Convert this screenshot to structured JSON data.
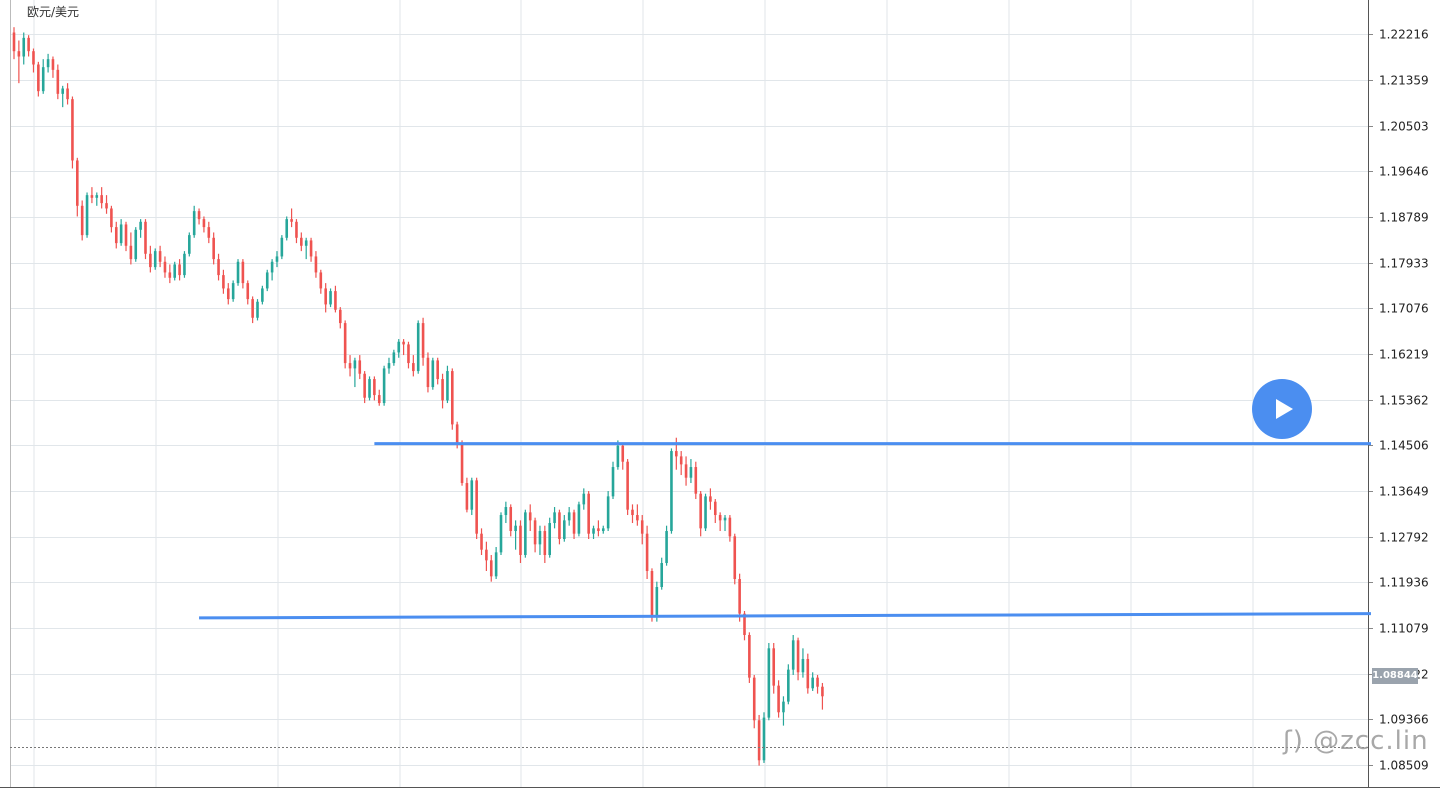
{
  "header": {
    "pair_label": "欧元/美元"
  },
  "watermark": {
    "text": "ʃ) @zcc.lin"
  },
  "current_price_label": "1.08844",
  "colors": {
    "up": "#26a69a",
    "down": "#ef5350",
    "support_resistance": "#4b8ef0",
    "grid": "#e1e6ea",
    "axis_text": "#222222",
    "play_button": "#4b8ef0",
    "price_tag_bg": "#9aa3ad"
  },
  "icons": {
    "play": "play-icon"
  },
  "chart_data": {
    "type": "candlestick",
    "title": "",
    "y_ticks": [
      "1.22216",
      "1.21359",
      "1.20503",
      "1.19646",
      "1.18789",
      "1.17933",
      "1.17076",
      "1.16219",
      "1.15362",
      "1.14506",
      "1.13649",
      "1.12792",
      "1.11936",
      "1.11079",
      "1.10222",
      "1.09366",
      "1.08509"
    ],
    "ylim": [
      1.0808,
      1.2286
    ],
    "grid": true,
    "current_price": 1.08844,
    "horizontal_lines": [
      {
        "name": "resistance",
        "start_index": 74,
        "end_index": 254,
        "y_start": 1.1454,
        "y_end": 1.1454
      },
      {
        "name": "support",
        "start_index": 38,
        "end_index": 254,
        "y_start": 1.1127,
        "y_end": 1.1135
      }
    ],
    "candles": [
      [
        1.2225,
        1.2235,
        1.2175,
        1.219
      ],
      [
        1.219,
        1.221,
        1.213,
        1.218
      ],
      [
        1.218,
        1.2225,
        1.2165,
        1.2215
      ],
      [
        1.2215,
        1.222,
        1.218,
        1.219
      ],
      [
        1.219,
        1.2195,
        1.215,
        1.2165
      ],
      [
        1.2165,
        1.217,
        1.2105,
        1.2115
      ],
      [
        1.2115,
        1.2175,
        1.211,
        1.216
      ],
      [
        1.216,
        1.2185,
        1.215,
        1.2175
      ],
      [
        1.2175,
        1.218,
        1.214,
        1.2155
      ],
      [
        1.2155,
        1.2165,
        1.21,
        1.211
      ],
      [
        1.211,
        1.2125,
        1.2085,
        1.212
      ],
      [
        1.212,
        1.213,
        1.209,
        1.21
      ],
      [
        1.21,
        1.2105,
        1.197,
        1.1985
      ],
      [
        1.1985,
        1.199,
        1.188,
        1.19
      ],
      [
        1.19,
        1.191,
        1.1835,
        1.1845
      ],
      [
        1.1845,
        1.1925,
        1.184,
        1.192
      ],
      [
        1.192,
        1.1935,
        1.1905,
        1.1915
      ],
      [
        1.1915,
        1.1925,
        1.19,
        1.192
      ],
      [
        1.192,
        1.1935,
        1.1895,
        1.1905
      ],
      [
        1.1905,
        1.192,
        1.1885,
        1.1895
      ],
      [
        1.1895,
        1.19,
        1.185,
        1.186
      ],
      [
        1.186,
        1.187,
        1.182,
        1.183
      ],
      [
        1.183,
        1.1875,
        1.1825,
        1.1865
      ],
      [
        1.1865,
        1.187,
        1.1815,
        1.1825
      ],
      [
        1.1825,
        1.185,
        1.179,
        1.18
      ],
      [
        1.18,
        1.186,
        1.1795,
        1.1855
      ],
      [
        1.1855,
        1.1875,
        1.184,
        1.187
      ],
      [
        1.187,
        1.1875,
        1.18,
        1.181
      ],
      [
        1.181,
        1.1825,
        1.1775,
        1.1785
      ],
      [
        1.1785,
        1.182,
        1.178,
        1.1815
      ],
      [
        1.1815,
        1.1825,
        1.1785,
        1.1795
      ],
      [
        1.1795,
        1.1805,
        1.1765,
        1.1775
      ],
      [
        1.1775,
        1.179,
        1.1755,
        1.1765
      ],
      [
        1.1765,
        1.1795,
        1.176,
        1.179
      ],
      [
        1.179,
        1.18,
        1.176,
        1.177
      ],
      [
        1.177,
        1.1815,
        1.1765,
        1.181
      ],
      [
        1.181,
        1.185,
        1.1805,
        1.1845
      ],
      [
        1.1845,
        1.19,
        1.184,
        1.189
      ],
      [
        1.189,
        1.1895,
        1.1865,
        1.1875
      ],
      [
        1.1875,
        1.188,
        1.185,
        1.186
      ],
      [
        1.186,
        1.187,
        1.183,
        1.184
      ],
      [
        1.184,
        1.185,
        1.179,
        1.18
      ],
      [
        1.18,
        1.181,
        1.176,
        1.177
      ],
      [
        1.177,
        1.178,
        1.1735,
        1.1745
      ],
      [
        1.1745,
        1.1755,
        1.1715,
        1.1725
      ],
      [
        1.1725,
        1.176,
        1.172,
        1.1755
      ],
      [
        1.1755,
        1.18,
        1.175,
        1.1795
      ],
      [
        1.1795,
        1.18,
        1.1745,
        1.1755
      ],
      [
        1.1755,
        1.176,
        1.1715,
        1.1725
      ],
      [
        1.1725,
        1.173,
        1.168,
        1.169
      ],
      [
        1.169,
        1.1725,
        1.1685,
        1.172
      ],
      [
        1.172,
        1.175,
        1.1715,
        1.1745
      ],
      [
        1.1745,
        1.178,
        1.174,
        1.1775
      ],
      [
        1.1775,
        1.18,
        1.176,
        1.1795
      ],
      [
        1.1795,
        1.1815,
        1.1785,
        1.1805
      ],
      [
        1.1805,
        1.1845,
        1.18,
        1.184
      ],
      [
        1.184,
        1.188,
        1.1835,
        1.1875
      ],
      [
        1.1875,
        1.1895,
        1.186,
        1.187
      ],
      [
        1.187,
        1.1875,
        1.183,
        1.184
      ],
      [
        1.184,
        1.185,
        1.1815,
        1.1825
      ],
      [
        1.1825,
        1.184,
        1.18,
        1.1835
      ],
      [
        1.1835,
        1.184,
        1.1795,
        1.1805
      ],
      [
        1.1805,
        1.1815,
        1.1765,
        1.1775
      ],
      [
        1.1775,
        1.178,
        1.1735,
        1.1745
      ],
      [
        1.1745,
        1.1755,
        1.17,
        1.1715
      ],
      [
        1.1715,
        1.1745,
        1.171,
        1.174
      ],
      [
        1.174,
        1.175,
        1.17,
        1.1705
      ],
      [
        1.1705,
        1.171,
        1.167,
        1.168
      ],
      [
        1.168,
        1.1685,
        1.1595,
        1.1605
      ],
      [
        1.1605,
        1.162,
        1.158,
        1.1595
      ],
      [
        1.1595,
        1.1615,
        1.156,
        1.161
      ],
      [
        1.161,
        1.162,
        1.1575,
        1.1585
      ],
      [
        1.1585,
        1.159,
        1.153,
        1.154
      ],
      [
        1.154,
        1.158,
        1.1535,
        1.1575
      ],
      [
        1.1575,
        1.158,
        1.1535,
        1.1545
      ],
      [
        1.1545,
        1.1555,
        1.1525,
        1.153
      ],
      [
        1.153,
        1.16,
        1.1525,
        1.1595
      ],
      [
        1.1595,
        1.1615,
        1.1585,
        1.1605
      ],
      [
        1.1605,
        1.163,
        1.16,
        1.1625
      ],
      [
        1.1625,
        1.165,
        1.1615,
        1.1645
      ],
      [
        1.1645,
        1.165,
        1.162,
        1.164
      ],
      [
        1.164,
        1.1645,
        1.1595,
        1.1605
      ],
      [
        1.1605,
        1.162,
        1.158,
        1.159
      ],
      [
        1.159,
        1.1685,
        1.1585,
        1.168
      ],
      [
        1.168,
        1.169,
        1.16,
        1.1615
      ],
      [
        1.1615,
        1.1625,
        1.155,
        1.156
      ],
      [
        1.156,
        1.1615,
        1.1555,
        1.161
      ],
      [
        1.161,
        1.1615,
        1.1565,
        1.1575
      ],
      [
        1.1575,
        1.1585,
        1.152,
        1.1535
      ],
      [
        1.1535,
        1.16,
        1.153,
        1.159
      ],
      [
        1.159,
        1.1595,
        1.148,
        1.149
      ],
      [
        1.149,
        1.1495,
        1.1445,
        1.1455
      ],
      [
        1.1455,
        1.146,
        1.1375,
        1.138
      ],
      [
        1.138,
        1.139,
        1.1325,
        1.133
      ],
      [
        1.133,
        1.139,
        1.132,
        1.1385
      ],
      [
        1.1385,
        1.139,
        1.1275,
        1.1285
      ],
      [
        1.1285,
        1.1295,
        1.1245,
        1.1255
      ],
      [
        1.1255,
        1.127,
        1.1215,
        1.1235
      ],
      [
        1.1235,
        1.1245,
        1.1195,
        1.1205
      ],
      [
        1.1205,
        1.126,
        1.12,
        1.125
      ],
      [
        1.125,
        1.1325,
        1.1245,
        1.132
      ],
      [
        1.132,
        1.1345,
        1.1305,
        1.1335
      ],
      [
        1.1335,
        1.134,
        1.128,
        1.129
      ],
      [
        1.129,
        1.131,
        1.1255,
        1.13
      ],
      [
        1.13,
        1.131,
        1.123,
        1.1245
      ],
      [
        1.1245,
        1.133,
        1.124,
        1.1325
      ],
      [
        1.1325,
        1.134,
        1.129,
        1.131
      ],
      [
        1.131,
        1.1315,
        1.125,
        1.1265
      ],
      [
        1.1265,
        1.13,
        1.1245,
        1.129
      ],
      [
        1.129,
        1.13,
        1.123,
        1.1245
      ],
      [
        1.1245,
        1.1315,
        1.124,
        1.1305
      ],
      [
        1.1305,
        1.1335,
        1.1295,
        1.1325
      ],
      [
        1.1325,
        1.133,
        1.1265,
        1.1275
      ],
      [
        1.1275,
        1.132,
        1.127,
        1.131
      ],
      [
        1.131,
        1.1335,
        1.13,
        1.1325
      ],
      [
        1.1325,
        1.133,
        1.1275,
        1.1285
      ],
      [
        1.1285,
        1.1345,
        1.128,
        1.134
      ],
      [
        1.134,
        1.137,
        1.133,
        1.136
      ],
      [
        1.136,
        1.1365,
        1.1275,
        1.1285
      ],
      [
        1.1285,
        1.13,
        1.1275,
        1.1295
      ],
      [
        1.1295,
        1.131,
        1.128,
        1.129
      ],
      [
        1.129,
        1.13,
        1.1285,
        1.1295
      ],
      [
        1.1295,
        1.1365,
        1.129,
        1.1355
      ],
      [
        1.1355,
        1.142,
        1.135,
        1.141
      ],
      [
        1.141,
        1.146,
        1.1405,
        1.145
      ],
      [
        1.145,
        1.1455,
        1.1405,
        1.142
      ],
      [
        1.142,
        1.1425,
        1.132,
        1.133
      ],
      [
        1.133,
        1.134,
        1.1305,
        1.132
      ],
      [
        1.132,
        1.134,
        1.13,
        1.131
      ],
      [
        1.131,
        1.132,
        1.1265,
        1.1285
      ],
      [
        1.1285,
        1.13,
        1.12,
        1.1215
      ],
      [
        1.1215,
        1.122,
        1.112,
        1.113
      ],
      [
        1.113,
        1.1195,
        1.112,
        1.1185
      ],
      [
        1.1185,
        1.124,
        1.118,
        1.123
      ],
      [
        1.123,
        1.13,
        1.1225,
        1.129
      ],
      [
        1.129,
        1.1445,
        1.1285,
        1.144
      ],
      [
        1.144,
        1.1465,
        1.1405,
        1.143
      ],
      [
        1.143,
        1.144,
        1.1395,
        1.1415
      ],
      [
        1.1415,
        1.143,
        1.1375,
        1.139
      ],
      [
        1.139,
        1.1425,
        1.138,
        1.141
      ],
      [
        1.141,
        1.142,
        1.135,
        1.136
      ],
      [
        1.136,
        1.1365,
        1.128,
        1.1295
      ],
      [
        1.1295,
        1.136,
        1.129,
        1.1355
      ],
      [
        1.1355,
        1.137,
        1.133,
        1.1345
      ],
      [
        1.1345,
        1.135,
        1.1305,
        1.132
      ],
      [
        1.132,
        1.1325,
        1.129,
        1.131
      ],
      [
        1.131,
        1.132,
        1.129,
        1.1315
      ],
      [
        1.1315,
        1.132,
        1.127,
        1.128
      ],
      [
        1.128,
        1.1285,
        1.119,
        1.12
      ],
      [
        1.12,
        1.121,
        1.112,
        1.1135
      ],
      [
        1.1135,
        1.114,
        1.1085,
        1.1095
      ],
      [
        1.1095,
        1.11,
        1.1005,
        1.1015
      ],
      [
        1.1015,
        1.102,
        1.092,
        1.0935
      ],
      [
        1.0935,
        1.0945,
        1.085,
        1.086
      ],
      [
        1.086,
        1.095,
        1.0855,
        1.094
      ],
      [
        1.094,
        1.108,
        1.0935,
        1.107
      ],
      [
        1.107,
        1.108,
        1.0985,
        1.1
      ],
      [
        1.1,
        1.101,
        1.094,
        1.095
      ],
      [
        1.095,
        1.098,
        1.0925,
        1.097
      ],
      [
        1.097,
        1.104,
        1.0965,
        1.103
      ],
      [
        1.103,
        1.1095,
        1.102,
        1.1085
      ],
      [
        1.1085,
        1.109,
        1.101,
        1.1025
      ],
      [
        1.1025,
        1.107,
        1.1015,
        1.105
      ],
      [
        1.105,
        1.106,
        1.0985,
        1.0995
      ],
      [
        1.0995,
        1.1025,
        1.099,
        1.1015
      ],
      [
        1.1015,
        1.102,
        1.0985,
        1.0998
      ],
      [
        1.0998,
        1.1005,
        1.0955,
        1.098
      ]
    ]
  }
}
